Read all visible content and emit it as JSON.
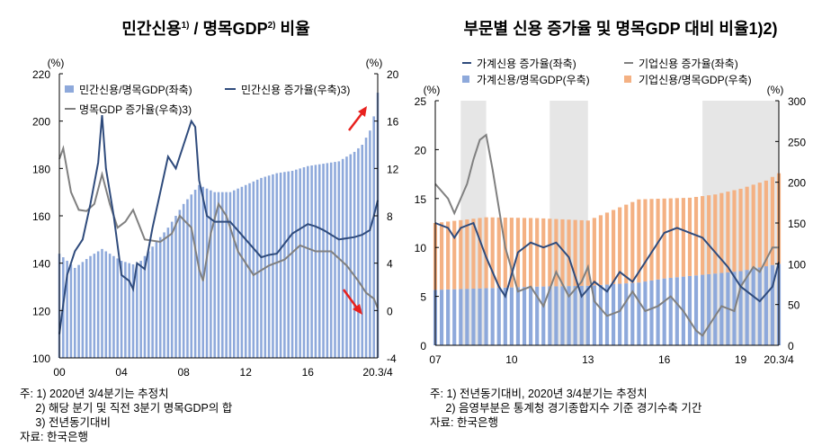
{
  "chart_data": [
    {
      "type": "bar+line",
      "title": "민간신용1) / 명목GDP2) 비율",
      "y_left_unit": "(%)",
      "y_right_unit": "(%)",
      "ylim_left": [
        100,
        220
      ],
      "ylim_right": [
        -4,
        20
      ],
      "yticks_left": [
        100,
        120,
        140,
        160,
        180,
        200,
        220
      ],
      "yticks_right": [
        -4,
        0,
        4,
        8,
        12,
        16,
        20
      ],
      "xticks": [
        "00",
        "04",
        "08",
        "12",
        "16",
        "20.3/4"
      ],
      "x_range": [
        2000.0,
        2020.5
      ],
      "legend": [
        "민간신용/명목GDP(좌축)",
        "민간신용 증가율(우축)3)",
        "명목GDP 증가율(우축)3)"
      ],
      "colors": {
        "bar": "#8ea9db",
        "credit": "#2f4b7c",
        "gdp": "#808080",
        "arrow": "#e8211e"
      },
      "bars": {
        "name": "민간신용/명목GDP(좌축)",
        "x": [
          2000,
          2001,
          2002,
          2002.75,
          2004,
          2005,
          2006,
          2007,
          2008,
          2009,
          2010,
          2011,
          2012,
          2013,
          2014,
          2015,
          2016,
          2017,
          2018,
          2019,
          2019.5,
          2020,
          2020.25,
          2020.5
        ],
        "values": [
          144,
          138,
          143,
          146,
          141,
          139,
          147,
          155,
          165,
          173,
          170,
          170,
          173,
          176,
          178,
          179,
          181,
          182,
          183,
          187,
          190,
          196,
          202,
          212
        ]
      },
      "series": [
        {
          "name": "민간신용 증가율(우축)3)",
          "axis": "right",
          "x": [
            2000,
            2000.5,
            2001,
            2001.5,
            2002,
            2002.5,
            2002.75,
            2003,
            2003.5,
            2003.75,
            2004,
            2004.5,
            2004.75,
            2005,
            2005.5,
            2006,
            2006.5,
            2007,
            2007.5,
            2008,
            2008.5,
            2008.75,
            2009,
            2009.5,
            2010,
            2011,
            2012,
            2013,
            2013.5,
            2014,
            2015,
            2016,
            2016.5,
            2017,
            2018,
            2019,
            2019.5,
            2020,
            2020.25,
            2020.5
          ],
          "values": [
            -2,
            3,
            5,
            6,
            9,
            12.5,
            16.5,
            12,
            8,
            5.5,
            3,
            2.5,
            1.8,
            4,
            3.5,
            7,
            10,
            13,
            12,
            14,
            16,
            15.5,
            11,
            8,
            7.5,
            7.5,
            6,
            4.5,
            4.7,
            4.8,
            6.5,
            7.3,
            7.1,
            6.8,
            6,
            6.2,
            6.4,
            6.8,
            8,
            9.3
          ]
        },
        {
          "name": "명목GDP 증가율(우축)3)",
          "axis": "right",
          "x": [
            2000,
            2000.25,
            2000.75,
            2001.25,
            2001.75,
            2002.25,
            2002.75,
            2003.25,
            2003.75,
            2004.25,
            2004.75,
            2005.5,
            2006.5,
            2007.25,
            2007.75,
            2008.5,
            2009,
            2009.25,
            2009.75,
            2010.25,
            2010.75,
            2011.5,
            2012.5,
            2013.5,
            2014.5,
            2015.5,
            2016.5,
            2017.5,
            2018.5,
            2019.25,
            2019.75,
            2020.25,
            2020.5
          ],
          "values": [
            12.8,
            13.7,
            10,
            8.5,
            8.4,
            9,
            11.5,
            9,
            7,
            7.5,
            8.5,
            6,
            5.8,
            6.5,
            8,
            7,
            3.5,
            2.5,
            6.5,
            9,
            8,
            5,
            3,
            3.8,
            4.3,
            5.5,
            5,
            5,
            3.8,
            2.5,
            1.5,
            1,
            0.2
          ]
        }
      ]
    },
    {
      "type": "bar+line",
      "title": "부문별 신용 증가율 및 명목GDP 대비 비율1)2)",
      "y_left_unit": "(%)",
      "y_right_unit": "(%)",
      "ylim_left": [
        0,
        25
      ],
      "ylim_right": [
        0,
        300
      ],
      "yticks_left": [
        0,
        5,
        10,
        15,
        20,
        25
      ],
      "yticks_right": [
        0,
        50,
        100,
        150,
        200,
        250,
        300
      ],
      "xticks": [
        "07",
        "10",
        "13",
        "16",
        "19",
        "20.3/4"
      ],
      "x_range": [
        2007.0,
        2020.5
      ],
      "legend": [
        "가계신용 증가율(좌축)",
        "기업신용 증가율(좌축)",
        "가계신용/명목GDP(우축)",
        "기업신용/명목GDP(우축)"
      ],
      "recessions": [
        [
          2008.0,
          2009.0
        ],
        [
          2011.5,
          2013.0
        ],
        [
          2017.5,
          2020.5
        ]
      ],
      "colors": {
        "household_bar": "#8ea9db",
        "corporate_bar": "#f4b183",
        "household": "#2f4b7c",
        "corporate": "#808080",
        "shade": "#e6e6e6"
      },
      "stacked_bars": {
        "x": [
          2007,
          2009,
          2011,
          2013,
          2015,
          2016,
          2017,
          2018,
          2019,
          2020,
          2020.5
        ],
        "household": [
          68,
          70,
          72,
          73,
          77,
          82,
          85,
          88,
          91,
          97,
          100
        ],
        "corporate": [
          82,
          87,
          84,
          80,
          102,
          98,
          96,
          97,
          101,
          105,
          111
        ]
      },
      "series": [
        {
          "name": "가계신용 증가율(좌축)",
          "axis": "left",
          "x": [
            2007,
            2007.5,
            2007.75,
            2008,
            2008.5,
            2009,
            2009.5,
            2009.75,
            2010.25,
            2010.75,
            2011.25,
            2011.75,
            2012.25,
            2012.75,
            2013.25,
            2013.75,
            2014.25,
            2014.75,
            2015.5,
            2016,
            2016.5,
            2017,
            2017.5,
            2018,
            2018.5,
            2019,
            2019.5,
            2019.75,
            2020.25,
            2020.5
          ],
          "values": [
            12.5,
            12,
            11,
            12,
            12.5,
            9,
            6,
            5,
            9.5,
            10.5,
            10,
            10.5,
            9,
            5,
            6.5,
            5.5,
            7.5,
            6.5,
            9.5,
            11.5,
            12,
            11.5,
            11,
            9.5,
            8,
            6,
            5,
            4.5,
            6,
            8.5
          ]
        },
        {
          "name": "기업신용 증가율(좌축)",
          "axis": "left",
          "x": [
            2007,
            2007.5,
            2007.75,
            2008.25,
            2008.5,
            2008.75,
            2009,
            2009.25,
            2009.75,
            2010.25,
            2010.75,
            2011.25,
            2011.75,
            2012.25,
            2012.75,
            2013,
            2013.25,
            2013.75,
            2014.25,
            2014.75,
            2015.25,
            2015.75,
            2016.25,
            2016.75,
            2017.25,
            2017.5,
            2017.75,
            2018.25,
            2018.75,
            2019,
            2019.5,
            2019.75,
            2020.25,
            2020.5
          ],
          "values": [
            16.5,
            15,
            13.5,
            16.5,
            19,
            21,
            21.5,
            18,
            10,
            5.5,
            6,
            4,
            7.5,
            5,
            6.5,
            8,
            4.5,
            3,
            3.5,
            5.5,
            3.5,
            4,
            5,
            3.5,
            1.5,
            1,
            2,
            4,
            3.5,
            6,
            8,
            7.5,
            10,
            10
          ]
        }
      ]
    }
  ],
  "left": {
    "title": "민간신용1) / 명목GDP2) 비율",
    "notes": "주: 1) 2020년 3/4분기는 추정치\n     2) 해당 분기 및 직전 3분기 명목GDP의 합\n     3) 전년동기대비\n자료: 한국은행"
  },
  "right": {
    "title": "부문별 신용 증가율 및 명목GDP 대비 비율1)2)",
    "notes": "주: 1) 전년동기대비, 2020년 3/4분기는 추정치\n     2) 음영부분은 통계청 경기종합지수 기준 경기수축 기간\n자료: 한국은행"
  }
}
